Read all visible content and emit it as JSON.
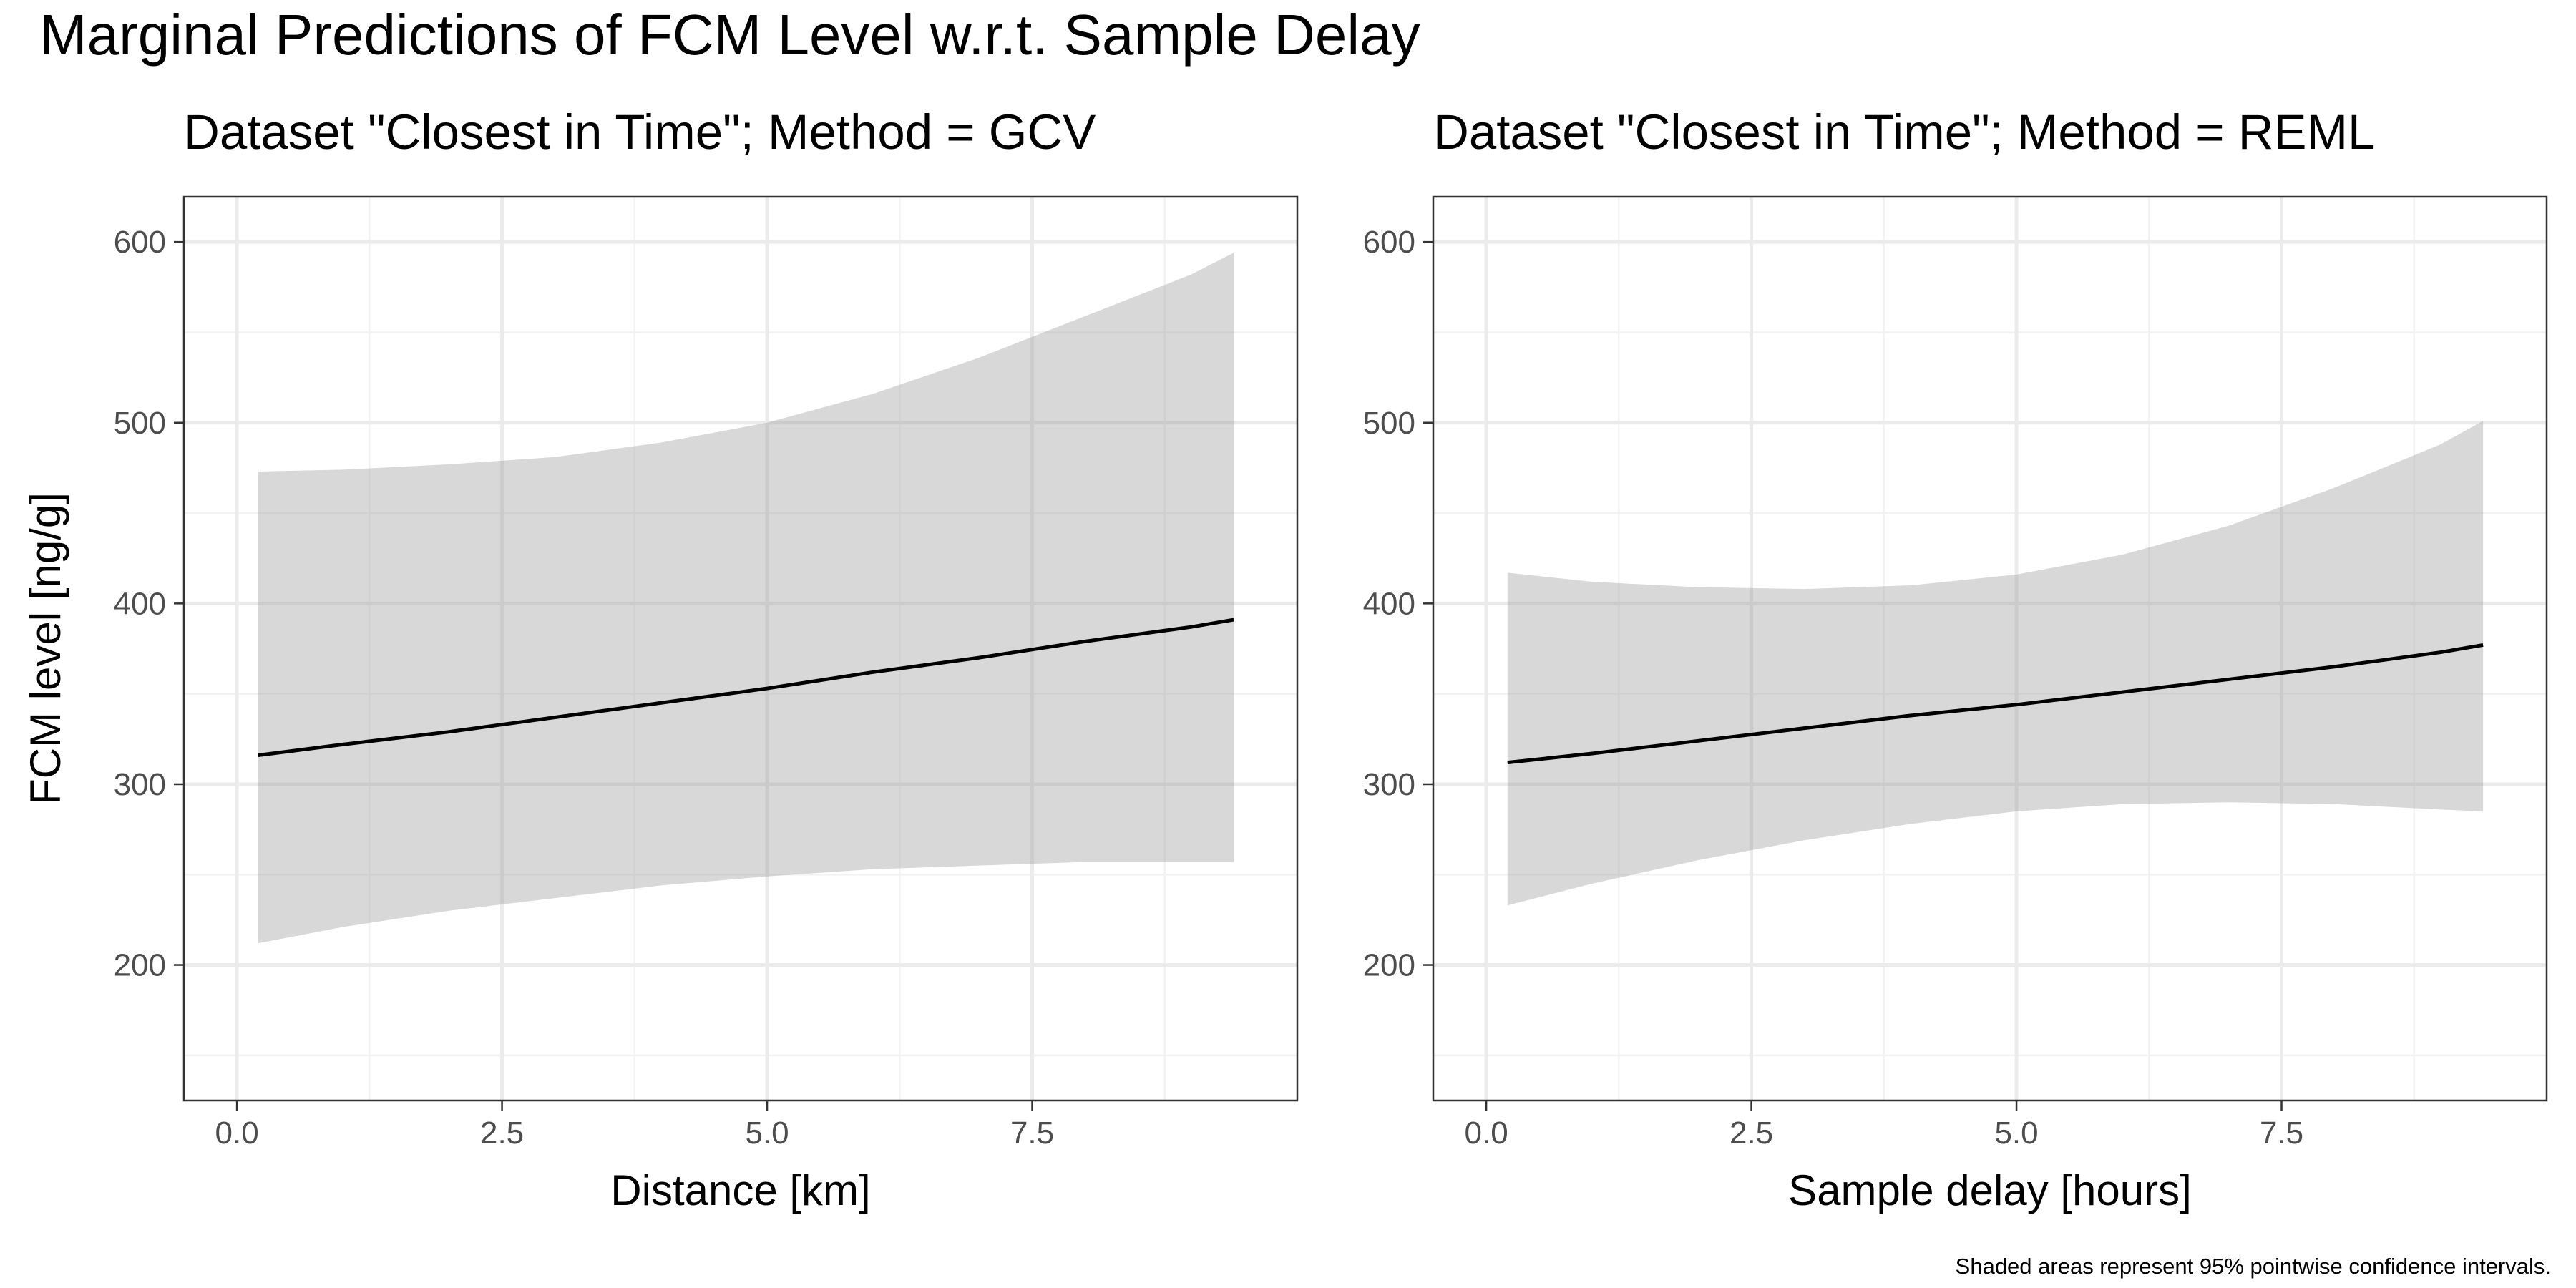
{
  "figure": {
    "title": "Marginal Predictions of FCM Level w.r.t. Sample Delay",
    "caption": "Shaded areas represent 95% pointwise confidence intervals."
  },
  "chart_data": [
    {
      "type": "line",
      "subtitle": "Dataset \"Closest in Time\"; Method = GCV",
      "xlabel": "Distance [km]",
      "ylabel": "FCM level [ng/g]",
      "xlim": [
        -0.5,
        10.0
      ],
      "ylim": [
        125,
        625
      ],
      "x_ticks": [
        0,
        2.5,
        5,
        7.5
      ],
      "x_tick_labels": [
        "0.0",
        "2.5",
        "5.0",
        "7.5"
      ],
      "y_ticks": [
        200,
        300,
        400,
        500,
        600
      ],
      "y_tick_labels": [
        "200",
        "300",
        "400",
        "500",
        "600"
      ],
      "grid": true,
      "fit": {
        "x": [
          0.2,
          1.0,
          2.0,
          3.0,
          4.0,
          5.0,
          6.0,
          7.0,
          8.0,
          9.0,
          9.4
        ],
        "y": [
          316,
          322,
          329,
          337,
          345,
          353,
          362,
          370,
          379,
          387,
          391
        ]
      },
      "band": {
        "x": [
          0.2,
          1.0,
          2.0,
          3.0,
          4.0,
          5.0,
          6.0,
          7.0,
          8.0,
          9.0,
          9.4
        ],
        "lower": [
          212,
          221,
          230,
          237,
          244,
          249,
          253,
          255,
          257,
          257,
          257
        ],
        "upper": [
          473,
          474,
          477,
          481,
          489,
          500,
          516,
          536,
          559,
          582,
          594
        ]
      }
    },
    {
      "type": "line",
      "subtitle": "Dataset \"Closest in Time\"; Method = REML",
      "xlabel": "Sample delay [hours]",
      "ylabel": "",
      "xlim": [
        -0.5,
        10.0
      ],
      "ylim": [
        125,
        625
      ],
      "x_ticks": [
        0,
        2.5,
        5,
        7.5
      ],
      "x_tick_labels": [
        "0.0",
        "2.5",
        "5.0",
        "7.5"
      ],
      "y_ticks": [
        200,
        300,
        400,
        500,
        600
      ],
      "y_tick_labels": [
        "200",
        "300",
        "400",
        "500",
        "600"
      ],
      "grid": true,
      "fit": {
        "x": [
          0.2,
          1.0,
          2.0,
          3.0,
          4.0,
          5.0,
          6.0,
          7.0,
          8.0,
          9.0,
          9.4
        ],
        "y": [
          312,
          317,
          324,
          331,
          338,
          344,
          351,
          358,
          365,
          373,
          377
        ]
      },
      "band": {
        "x": [
          0.2,
          1.0,
          2.0,
          3.0,
          4.0,
          5.0,
          6.0,
          7.0,
          8.0,
          9.0,
          9.4
        ],
        "lower": [
          233,
          245,
          258,
          269,
          278,
          285,
          289,
          290,
          289,
          286,
          285
        ],
        "upper": [
          417,
          412,
          409,
          408,
          410,
          416,
          427,
          443,
          464,
          488,
          501
        ]
      }
    }
  ]
}
